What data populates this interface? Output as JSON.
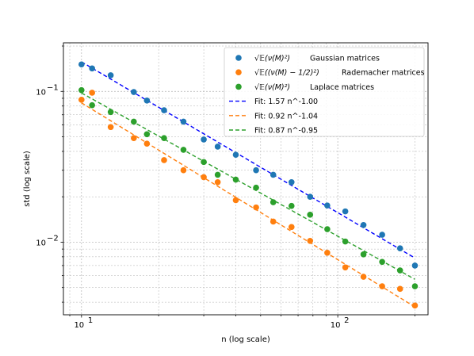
{
  "chart_data": {
    "type": "scatter",
    "xlabel": "n (log scale)",
    "ylabel": "std (log scale)",
    "xscale": "log",
    "yscale": "log",
    "xlim": [
      8.5,
      225
    ],
    "ylim": [
      0.0033,
      0.21
    ],
    "grid": true,
    "legend_position": "top-right",
    "x_tick_labels": [
      {
        "base": "10",
        "exp": "1",
        "value": 10
      },
      {
        "base": "10",
        "exp": "2",
        "value": 100
      }
    ],
    "y_tick_labels": [
      {
        "base": "10",
        "exp": "−1",
        "value": 0.1
      },
      {
        "base": "10",
        "exp": "−2",
        "value": 0.01
      }
    ],
    "x": [
      10,
      11,
      13,
      16,
      18,
      21,
      25,
      30,
      34,
      40,
      48,
      56,
      66,
      78,
      91,
      107,
      126,
      149,
      175,
      200
    ],
    "series": [
      {
        "name": "Gaussian matrices",
        "label_math": "√𝔼(ν(M)²)",
        "color": "#1f77b4",
        "values": [
          0.151,
          0.142,
          0.128,
          0.099,
          0.087,
          0.075,
          0.063,
          0.048,
          0.043,
          0.038,
          0.03,
          0.028,
          0.025,
          0.02,
          0.0175,
          0.016,
          0.013,
          0.0112,
          0.0091,
          0.007
        ]
      },
      {
        "name": "Rademacher matrices",
        "label_math": "√𝔼((ν(M) − 1/2)²)",
        "color": "#ff7f0e",
        "values": [
          0.088,
          0.098,
          0.058,
          0.049,
          0.045,
          0.035,
          0.03,
          0.027,
          0.025,
          0.019,
          0.017,
          0.0137,
          0.0126,
          0.0102,
          0.0085,
          0.0068,
          0.0059,
          0.0051,
          0.0049,
          0.0038
        ]
      },
      {
        "name": "Laplace matrices",
        "label_math": "√𝔼(ν(M)²)",
        "color": "#2ca02c",
        "values": [
          0.102,
          0.081,
          0.073,
          0.063,
          0.052,
          0.049,
          0.041,
          0.034,
          0.028,
          0.026,
          0.023,
          0.0184,
          0.0174,
          0.0152,
          0.0122,
          0.0101,
          0.0083,
          0.0074,
          0.0065,
          0.0051
        ]
      }
    ],
    "fits": [
      {
        "label": "Fit: 1.57 n^-1.00",
        "a": 1.57,
        "b": -1.0,
        "color": "#0000ff",
        "x_range": [
          10,
          200
        ]
      },
      {
        "label": "Fit: 0.92 n^-1.04",
        "a": 0.92,
        "b": -1.04,
        "color": "#ff7f0e",
        "x_range": [
          10,
          200
        ]
      },
      {
        "label": "Fit: 0.87 n^-0.95",
        "a": 0.87,
        "b": -0.95,
        "color": "#2ca02c",
        "x_range": [
          10,
          200
        ]
      }
    ]
  }
}
